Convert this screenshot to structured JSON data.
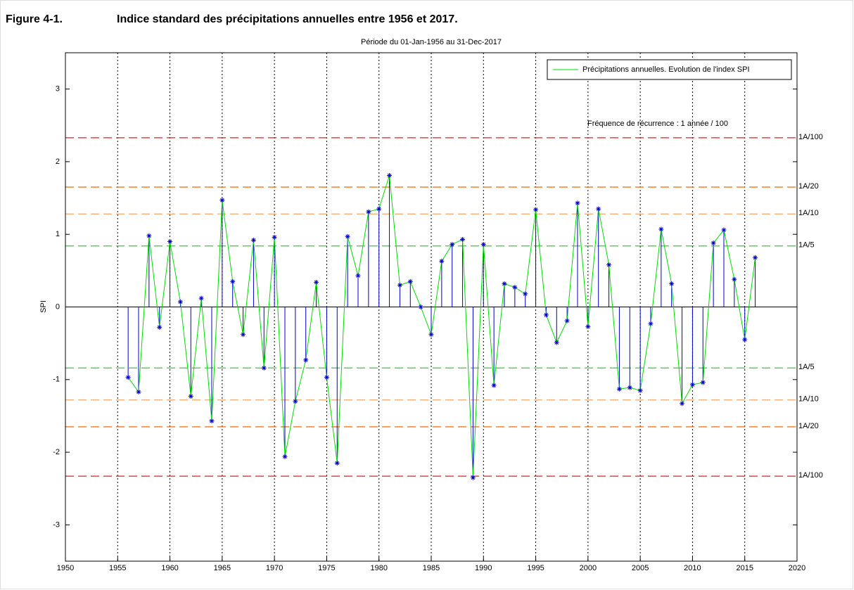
{
  "chart_data": {
    "type": "stem",
    "figure_label": "Figure 4-1.",
    "title": "Indice standard des précipitations annuelles entre 1956 et 2017.",
    "subtitle": "Période du 01-Jan-1956 au 31-Dec-2017",
    "ylabel": "SPI",
    "annotation": "Fréquence de récurrence : 1 année / 100",
    "legend": "upper right",
    "grid": "x",
    "x": [
      1956,
      1957,
      1958,
      1959,
      1960,
      1961,
      1962,
      1963,
      1964,
      1965,
      1966,
      1967,
      1968,
      1969,
      1970,
      1971,
      1972,
      1973,
      1974,
      1975,
      1976,
      1977,
      1978,
      1979,
      1980,
      1981,
      1982,
      1983,
      1984,
      1985,
      1986,
      1987,
      1988,
      1989,
      1990,
      1991,
      1992,
      1993,
      1994,
      1995,
      1996,
      1997,
      1998,
      1999,
      2000,
      2001,
      2002,
      2003,
      2004,
      2005,
      2006,
      2007,
      2008,
      2009,
      2010,
      2011,
      2012,
      2013,
      2014,
      2015,
      2016
    ],
    "series": [
      {
        "name": "Précipitations annuelles. Evolution de l'index SPI",
        "color": "#00dd00",
        "marker_color": "#0000cc",
        "values": [
          -0.97,
          -1.17,
          0.98,
          -0.28,
          0.9,
          0.07,
          -1.23,
          0.12,
          -1.57,
          1.47,
          0.35,
          -0.38,
          0.92,
          -0.84,
          0.96,
          -2.06,
          -1.3,
          -0.73,
          0.34,
          -0.97,
          -2.15,
          0.97,
          0.43,
          1.31,
          1.35,
          1.81,
          0.3,
          0.35,
          0.0,
          -0.38,
          0.63,
          0.86,
          0.93,
          -2.35,
          0.86,
          -1.08,
          0.32,
          0.27,
          0.18,
          1.34,
          -0.11,
          -0.49,
          -0.19,
          1.43,
          -0.27,
          1.35,
          0.58,
          -1.13,
          -1.11,
          -1.15,
          -0.23,
          1.07,
          0.32,
          -1.33,
          -1.07,
          -1.04,
          0.88,
          1.06,
          0.38,
          -0.45,
          0.68
        ]
      }
    ],
    "thresholds": [
      {
        "value": 2.33,
        "label": "1A/100",
        "color": "#dd2222"
      },
      {
        "value": 1.65,
        "label": "1A/20",
        "color": "#ee7722"
      },
      {
        "value": 1.28,
        "label": "1A/10",
        "color": "#f4b07a"
      },
      {
        "value": 0.84,
        "label": "1A/5",
        "color": "#33cc33"
      },
      {
        "value": -0.84,
        "label": "1A/5",
        "color": "#33cc33"
      },
      {
        "value": -1.28,
        "label": "1A/10",
        "color": "#f4b07a"
      },
      {
        "value": -1.65,
        "label": "1A/20",
        "color": "#ee7722"
      },
      {
        "value": -2.33,
        "label": "1A/100",
        "color": "#dd2222"
      }
    ],
    "xlim": [
      1950,
      2020
    ],
    "xticks": [
      1950,
      1955,
      1960,
      1965,
      1970,
      1975,
      1980,
      1985,
      1990,
      1995,
      2000,
      2005,
      2010,
      2015,
      2020
    ],
    "ylim": [
      -3.5,
      3.5
    ],
    "yticks": [
      -3,
      -2,
      -1,
      0,
      1,
      2,
      3
    ]
  }
}
